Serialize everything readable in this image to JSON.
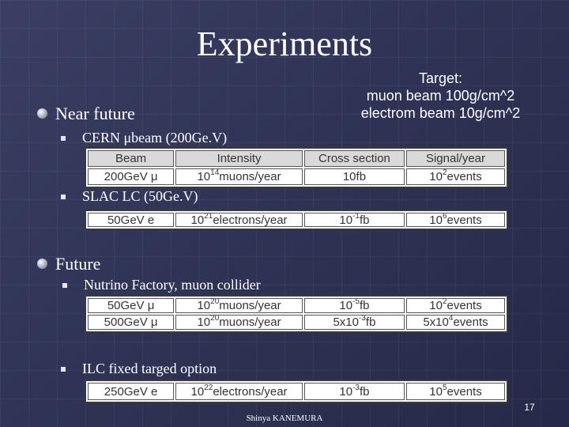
{
  "title": "Experiments",
  "target_note": [
    "Target:",
    "muon beam 100g/cm^2",
    "electrom beam 10g/cm^2"
  ],
  "sections": {
    "near_future": "Near future",
    "future": "Future"
  },
  "items": {
    "cern": "CERN μbeam (200Ge.V)",
    "slac": "SLAC LC (50Ge.V)",
    "nufact": "Nutrino Factory, muon collider",
    "ilc": "ILC fixed targed option"
  },
  "tables": {
    "cern": {
      "header": [
        "Beam",
        "Intensity",
        "Cross section",
        "Signal/year"
      ],
      "row": {
        "beam": "200GeV μ",
        "intensity": {
          "base": "10",
          "exp": "14",
          "rest": "muons/year"
        },
        "xsec": {
          "base": "10fb",
          "exp": "",
          "rest": ""
        },
        "signal": {
          "base": "10",
          "exp": "2",
          "rest": "events"
        }
      }
    },
    "slac": {
      "row": {
        "beam": "50GeV e",
        "intensity": {
          "base": "10",
          "exp": "21",
          "rest": "electrons/year"
        },
        "xsec": {
          "base": "10",
          "exp": "-1",
          "rest": "fb"
        },
        "signal": {
          "base": "10",
          "exp": "6",
          "rest": "events"
        }
      }
    },
    "nufact": {
      "rows": [
        {
          "beam": "50GeV μ",
          "intensity": {
            "base": "10",
            "exp": "20",
            "rest": "muons/year"
          },
          "xsec": {
            "base": "10",
            "exp": "-5",
            "rest": "fb"
          },
          "signal": {
            "base": "10",
            "exp": "2",
            "rest": "events"
          }
        },
        {
          "beam": "500GeV μ",
          "intensity": {
            "base": "10",
            "exp": "20",
            "rest": "muons/year"
          },
          "xsec": {
            "base": "5x10",
            "exp": "-3",
            "rest": "fb"
          },
          "signal": {
            "base": "5x10",
            "exp": "4",
            "rest": "events"
          }
        }
      ]
    },
    "ilc": {
      "row": {
        "beam": "250GeV e",
        "intensity": {
          "base": "10",
          "exp": "22",
          "rest": "electrons/year"
        },
        "xsec": {
          "base": "10",
          "exp": "-3",
          "rest": "fb"
        },
        "signal": {
          "base": "10",
          "exp": "5",
          "rest": "events"
        }
      }
    }
  },
  "footer": "Shinya KANEMURA",
  "page_number": "17"
}
